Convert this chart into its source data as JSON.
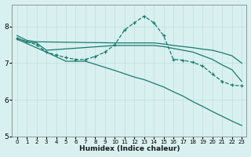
{
  "background_color": "#d8f0f0",
  "grid_color": "#c0dede",
  "line_color": "#1a7a6e",
  "xlabel": "Humidex (Indice chaleur)",
  "xlim": [
    -0.5,
    23.5
  ],
  "ylim": [
    5,
    8.6
  ],
  "yticks": [
    5,
    6,
    7,
    8
  ],
  "xticks": [
    0,
    1,
    2,
    3,
    4,
    5,
    6,
    7,
    8,
    9,
    10,
    11,
    12,
    13,
    14,
    15,
    16,
    17,
    18,
    19,
    20,
    21,
    22,
    23
  ],
  "series": [
    {
      "x": [
        0,
        1,
        2,
        10,
        12,
        13,
        14,
        15,
        16,
        17,
        18,
        19,
        20,
        21,
        22,
        23
      ],
      "y": [
        7.75,
        7.62,
        7.58,
        7.55,
        7.55,
        7.55,
        7.55,
        7.52,
        7.48,
        7.45,
        7.42,
        7.38,
        7.35,
        7.28,
        7.2,
        7.0
      ],
      "dashed": false,
      "marker": false
    },
    {
      "x": [
        0,
        1,
        2,
        3,
        10,
        12,
        13,
        14,
        15,
        16,
        17,
        18,
        19,
        20,
        21,
        22,
        23
      ],
      "y": [
        7.68,
        7.58,
        7.55,
        7.35,
        7.48,
        7.48,
        7.48,
        7.48,
        7.45,
        7.4,
        7.35,
        7.3,
        7.2,
        7.1,
        6.95,
        6.82,
        6.5
      ],
      "dashed": false,
      "marker": false
    },
    {
      "x": [
        0,
        1,
        2,
        3,
        4,
        5,
        6,
        7,
        8,
        9,
        10,
        11,
        12,
        13,
        14,
        15,
        16,
        17,
        18,
        19,
        20,
        21,
        22,
        23
      ],
      "y": [
        7.68,
        7.58,
        7.5,
        7.3,
        7.22,
        7.15,
        7.1,
        7.1,
        7.18,
        7.3,
        7.5,
        7.9,
        8.1,
        8.28,
        8.1,
        7.75,
        7.1,
        7.08,
        7.02,
        6.92,
        6.7,
        6.5,
        6.4,
        6.38
      ],
      "dashed": true,
      "marker": true
    },
    {
      "x": [
        0,
        3,
        5,
        6,
        7,
        10,
        12,
        13,
        14,
        15,
        16,
        17,
        18,
        19,
        20,
        21,
        22,
        23
      ],
      "y": [
        7.65,
        7.3,
        7.05,
        7.05,
        7.05,
        6.8,
        6.62,
        6.55,
        6.45,
        6.35,
        6.22,
        6.1,
        5.95,
        5.82,
        5.68,
        5.55,
        5.42,
        5.3
      ],
      "dashed": false,
      "marker": false
    }
  ]
}
